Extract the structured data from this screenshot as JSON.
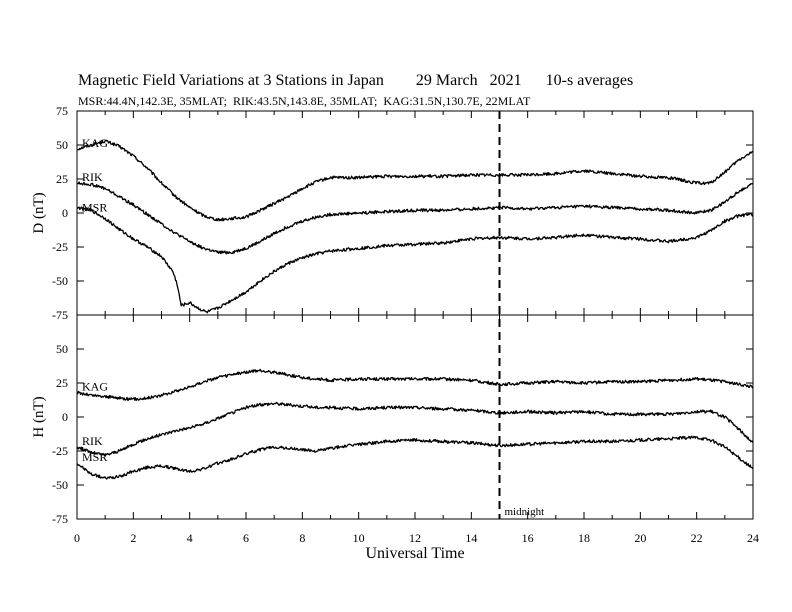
{
  "header": {
    "title": "Magnetic Field Variations at 3 Stations in Japan",
    "date": "29 March   2021",
    "averaging": "10-s averages",
    "stations_line": "MSR:44.4N,142.3E, 35MLAT;  RIK:43.5N,143.8E, 35MLAT;  KAG:31.5N,130.7E, 22MLAT"
  },
  "colors": {
    "line": "#000000",
    "background": "#ffffff"
  },
  "chart_data": [
    {
      "type": "line",
      "panel": "top",
      "ylabel": "D (nT)",
      "xlim": [
        0,
        24
      ],
      "ylim": [
        -75,
        75
      ],
      "yticks": [
        75,
        50,
        25,
        0,
        -25,
        -50,
        -75
      ],
      "grid": false,
      "series": [
        {
          "name": "KAG",
          "x": [
            0,
            0.5,
            1,
            1.5,
            2,
            2.5,
            3,
            3.5,
            4,
            4.5,
            5,
            5.5,
            6,
            6.5,
            7,
            7.5,
            8,
            8.5,
            9,
            10,
            11,
            12,
            13,
            14,
            15,
            16,
            17,
            18,
            19,
            20,
            21,
            22,
            22.5,
            23,
            23.5,
            24
          ],
          "y": [
            47,
            50,
            53,
            49,
            42,
            33,
            22,
            12,
            4,
            -2,
            -5,
            -4,
            -3,
            2,
            7,
            12,
            18,
            23,
            26,
            26,
            27,
            27,
            27,
            28,
            28,
            28,
            29,
            31,
            29,
            27,
            26,
            22,
            22,
            30,
            39,
            45
          ]
        },
        {
          "name": "RIK",
          "x": [
            0,
            0.5,
            1,
            1.5,
            2,
            2.5,
            3,
            3.5,
            4,
            4.5,
            5,
            5.5,
            6,
            6.5,
            7,
            7.5,
            8,
            8.5,
            9,
            10,
            11,
            12,
            13,
            14,
            15,
            16,
            17,
            18,
            19,
            20,
            21,
            22,
            22.5,
            23,
            23.5,
            24
          ],
          "y": [
            22,
            21,
            18,
            12,
            6,
            -1,
            -8,
            -15,
            -21,
            -26,
            -29,
            -29,
            -26,
            -21,
            -15,
            -10,
            -6,
            -3,
            -1,
            0,
            1,
            2,
            2,
            3,
            4,
            3,
            4,
            5,
            4,
            3,
            2,
            0,
            2,
            8,
            16,
            22
          ]
        },
        {
          "name": "MSR",
          "x": [
            0,
            0.5,
            1,
            1.5,
            2,
            2.5,
            3,
            3.4,
            3.55,
            3.7,
            4,
            4.3,
            4.6,
            5,
            5.5,
            6,
            6.5,
            7,
            7.5,
            8,
            8.5,
            9,
            10,
            11,
            12,
            13,
            14,
            15,
            16,
            17,
            18,
            19,
            20,
            21,
            22,
            22.5,
            23,
            23.5,
            24
          ],
          "y": [
            4,
            2,
            -4,
            -12,
            -19,
            -25,
            -32,
            -43,
            -52,
            -68,
            -66,
            -70,
            -73,
            -70,
            -64,
            -58,
            -50,
            -43,
            -37,
            -33,
            -30,
            -28,
            -26,
            -24,
            -23,
            -22,
            -19,
            -18,
            -19,
            -18,
            -16,
            -18,
            -19,
            -21,
            -18,
            -13,
            -6,
            -2,
            -1
          ]
        }
      ]
    },
    {
      "type": "line",
      "panel": "bottom",
      "ylabel": "H (nT)",
      "xlabel": "Universal Time",
      "xlim": [
        0,
        24
      ],
      "ylim": [
        -75,
        75
      ],
      "xticks": [
        0,
        2,
        4,
        6,
        8,
        10,
        12,
        14,
        16,
        18,
        20,
        22,
        24
      ],
      "yticks": [
        50,
        25,
        0,
        -25,
        -50,
        -75
      ],
      "grid": false,
      "annotation": {
        "text": "midnight",
        "x": 15
      },
      "series": [
        {
          "name": "KAG",
          "x": [
            0,
            0.5,
            1,
            1.5,
            2,
            2.5,
            3,
            3.5,
            4,
            4.5,
            5,
            5.5,
            6,
            6.5,
            7,
            7.5,
            8,
            8.5,
            9,
            10,
            11,
            12,
            13,
            14,
            15,
            16,
            17,
            18,
            19,
            20,
            21,
            22,
            23,
            23.5,
            24
          ],
          "y": [
            18,
            16,
            15,
            14,
            13,
            14,
            16,
            19,
            22,
            26,
            29,
            31,
            33,
            34,
            33,
            31,
            29,
            28,
            27,
            28,
            28,
            28,
            28,
            27,
            24,
            25,
            26,
            25,
            26,
            26,
            27,
            28,
            26,
            24,
            22
          ]
        },
        {
          "name": "RIK",
          "x": [
            0,
            0.5,
            1,
            1.5,
            2,
            2.5,
            3,
            3.5,
            4,
            4.5,
            5,
            5.5,
            6,
            6.5,
            7,
            7.5,
            8,
            8.5,
            9,
            10,
            11,
            12,
            13,
            14,
            15,
            16,
            17,
            18,
            19,
            20,
            21,
            22,
            22.5,
            23,
            23.5,
            24
          ],
          "y": [
            -22,
            -26,
            -28,
            -25,
            -20,
            -16,
            -13,
            -10,
            -8,
            -5,
            -1,
            3,
            7,
            9,
            10,
            9,
            8,
            7,
            7,
            6,
            7,
            7,
            6,
            5,
            3,
            4,
            3,
            4,
            2,
            2,
            2,
            4,
            4,
            0,
            -9,
            -19
          ]
        },
        {
          "name": "MSR",
          "x": [
            0,
            0.5,
            1,
            1.5,
            2,
            2.5,
            3,
            3.5,
            4,
            4.5,
            5,
            5.5,
            6,
            6.5,
            7,
            7.5,
            8,
            8.5,
            9,
            10,
            11,
            12,
            13,
            14,
            15,
            16,
            17,
            18,
            19,
            20,
            21,
            22,
            22.5,
            23,
            23.5,
            24
          ],
          "y": [
            -34,
            -42,
            -45,
            -44,
            -40,
            -37,
            -36,
            -38,
            -40,
            -38,
            -34,
            -31,
            -27,
            -24,
            -22,
            -23,
            -24,
            -25,
            -23,
            -20,
            -18,
            -17,
            -18,
            -19,
            -21,
            -20,
            -19,
            -18,
            -18,
            -17,
            -16,
            -15,
            -17,
            -22,
            -30,
            -38
          ]
        }
      ]
    }
  ]
}
